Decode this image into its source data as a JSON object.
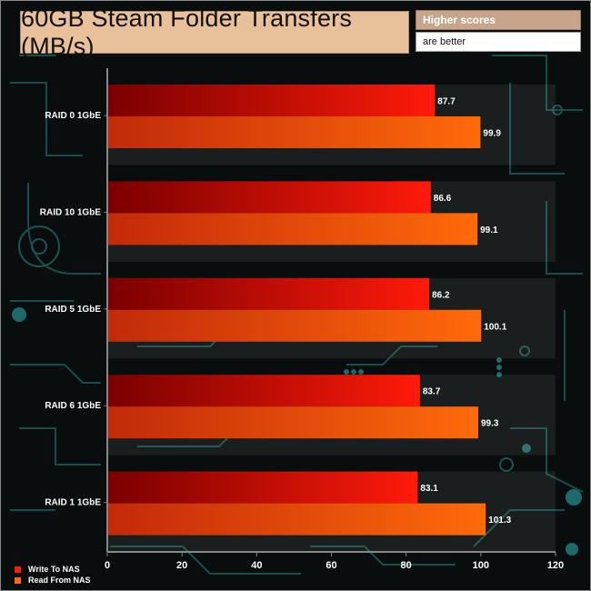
{
  "header": {
    "title": "60GB Steam Folder Transfers (MB/s)",
    "hint_line1": "Higher scores",
    "hint_line2": "are better"
  },
  "colors": {
    "write_from": "#7a0000",
    "write_to": "#ff1a0a",
    "read_from": "#c22a0a",
    "read_to": "#ff6a0a",
    "background": "#0a0d0d",
    "circuit": "#1d5c5c"
  },
  "chart_data": {
    "type": "bar",
    "orientation": "horizontal",
    "categories": [
      "RAID 0 1GbE",
      "RAID 10 1GbE",
      "RAID 5 1GbE",
      "RAID 6 1GbE",
      "RAID 1 1GbE"
    ],
    "series": [
      {
        "name": "Write To NAS",
        "values": [
          87.7,
          86.6,
          86.2,
          83.7,
          83.1
        ]
      },
      {
        "name": "Read From NAS",
        "values": [
          99.9,
          99.1,
          100.1,
          99.3,
          101.3
        ]
      }
    ],
    "xlim": [
      0,
      120
    ],
    "xticks": [
      0,
      20,
      40,
      60,
      80,
      100,
      120
    ],
    "title": "60GB Steam Folder Transfers (MB/s)",
    "legend_position": "bottom-left",
    "grid": false
  }
}
